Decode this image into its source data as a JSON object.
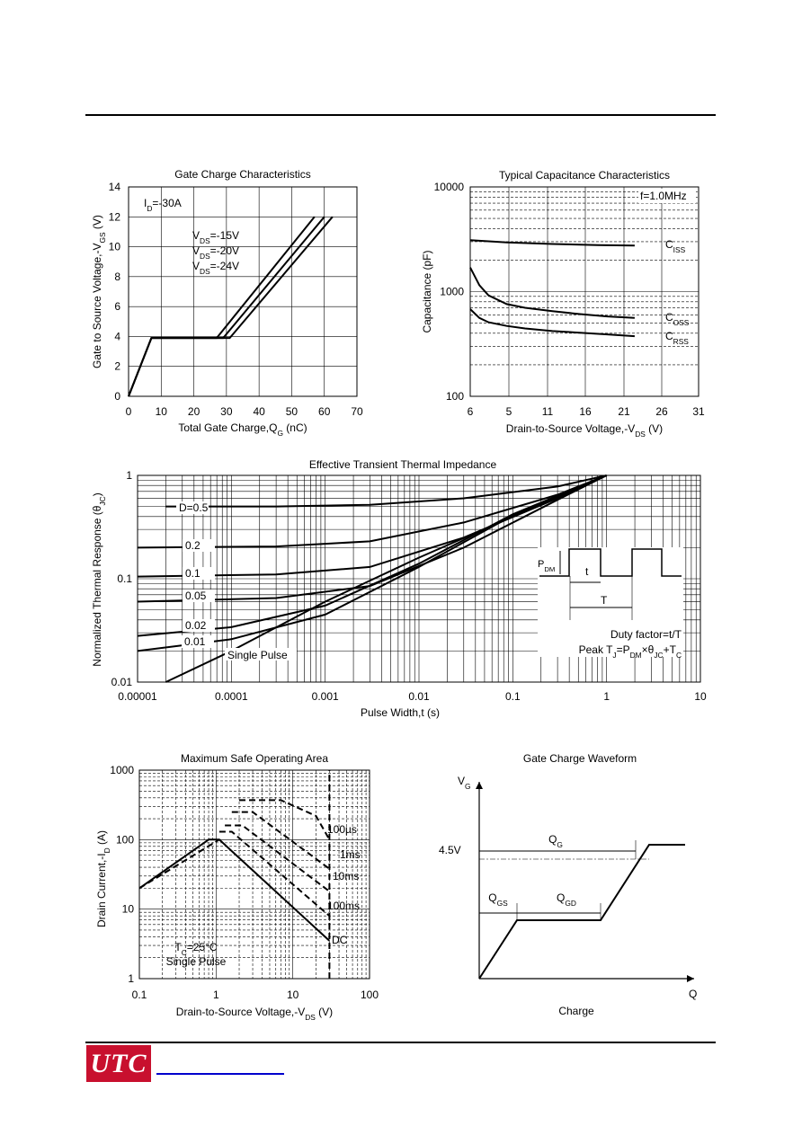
{
  "footer": {
    "logo_text": "UTC"
  },
  "chart_data": [
    {
      "id": "gate_charge",
      "type": "line",
      "title": "Gate Charge Characteristics",
      "xlabel": "Total Gate Charge,Q_G (nC)",
      "ylabel": "Gate to Source Voltage,-V_GS (V)",
      "xlim": [
        0,
        70
      ],
      "ylim": [
        0,
        14
      ],
      "xticks": [
        "0",
        "10",
        "20",
        "30",
        "40",
        "50",
        "60",
        "70"
      ],
      "yticks": [
        "0",
        "2",
        "4",
        "6",
        "8",
        "10",
        "12",
        "14"
      ],
      "grid": true,
      "annotations": [
        "I_D=-30A",
        "V_DS=-15V",
        "V_DS=-20V",
        "V_DS=-24V"
      ],
      "series": [
        {
          "x": [
            0,
            7,
            27,
            57
          ],
          "y": [
            0,
            3.9,
            3.9,
            12
          ]
        },
        {
          "x": [
            0,
            7,
            29,
            60
          ],
          "y": [
            0,
            3.9,
            3.9,
            12
          ]
        },
        {
          "x": [
            0,
            7,
            31,
            62.5
          ],
          "y": [
            0,
            3.9,
            3.9,
            12
          ]
        }
      ]
    },
    {
      "id": "capacitance",
      "type": "line",
      "title": "Typical Capacitance  Characteristics",
      "xlabel": "Drain-to-Source Voltage,-V_DS (V)",
      "ylabel": "Capacitance (pF)",
      "xlim": [
        6,
        31
      ],
      "ylim": [
        100,
        10000
      ],
      "yscale": "log",
      "xticks": [
        "6",
        "5",
        "11",
        "16",
        "21",
        "26",
        "31"
      ],
      "yticks": [
        "100",
        "1000",
        "10000"
      ],
      "grid": true,
      "annotations": [
        "f=1.0MHz"
      ],
      "series": [
        {
          "name": "C_ISS",
          "x": [
            6,
            10,
            15,
            20,
            24
          ],
          "y": [
            3100,
            2950,
            2850,
            2780,
            2750
          ]
        },
        {
          "name": "C_OSS",
          "x": [
            6,
            7,
            8,
            10,
            12,
            15,
            18,
            21,
            24
          ],
          "y": [
            1700,
            1150,
            920,
            760,
            700,
            650,
            610,
            580,
            560
          ]
        },
        {
          "name": "C_RSS",
          "x": [
            6,
            7,
            8,
            10,
            12,
            15,
            18,
            21,
            24
          ],
          "y": [
            680,
            560,
            510,
            470,
            445,
            420,
            405,
            390,
            375
          ]
        }
      ]
    },
    {
      "id": "thermal_impedance",
      "type": "line",
      "title": "Effective Transient Thermal Impedance",
      "xlabel": "Pulse Width,t (s)",
      "ylabel": "Normalized Thermal Response (θ_JC)",
      "xscale": "log",
      "yscale": "log",
      "xlim": [
        1e-05,
        10
      ],
      "ylim": [
        0.01,
        1
      ],
      "xticks": [
        "0.00001",
        "0.0001",
        "0.001",
        "0.01",
        "0.1",
        "1",
        "10"
      ],
      "yticks": [
        "0.01",
        "0.1",
        "1"
      ],
      "grid": true,
      "annotations": [
        "P_DM",
        "t",
        "T",
        "Duty factor=t/T",
        "Peak T_J=P_DM×θ_JC+T_C"
      ],
      "series": [
        {
          "name": "D=0.5",
          "x": [
            2e-05,
            0.0003,
            0.003,
            0.03,
            0.3,
            1
          ],
          "y": [
            0.5,
            0.5,
            0.52,
            0.6,
            0.78,
            1
          ]
        },
        {
          "name": "0.2",
          "x": [
            1e-05,
            0.0003,
            0.003,
            0.03,
            0.3,
            1
          ],
          "y": [
            0.2,
            0.205,
            0.23,
            0.35,
            0.65,
            1
          ]
        },
        {
          "name": "0.1",
          "x": [
            1e-05,
            0.0003,
            0.003,
            0.03,
            0.3,
            1
          ],
          "y": [
            0.105,
            0.11,
            0.13,
            0.25,
            0.6,
            1
          ]
        },
        {
          "name": "0.05",
          "x": [
            1e-05,
            0.0003,
            0.003,
            0.03,
            0.3,
            1
          ],
          "y": [
            0.06,
            0.065,
            0.085,
            0.2,
            0.58,
            1
          ]
        },
        {
          "name": "0.02",
          "x": [
            1e-05,
            0.0001,
            0.001,
            0.01,
            0.1,
            1
          ],
          "y": [
            0.028,
            0.034,
            0.055,
            0.14,
            0.42,
            1
          ]
        },
        {
          "name": "0.01",
          "x": [
            1e-05,
            0.0001,
            0.001,
            0.01,
            0.1,
            1
          ],
          "y": [
            0.02,
            0.026,
            0.045,
            0.13,
            0.41,
            1
          ]
        },
        {
          "name": "Single Pulse",
          "x": [
            2e-05,
            0.0001,
            0.001,
            0.01,
            0.1,
            1
          ],
          "y": [
            0.01,
            0.02,
            0.06,
            0.16,
            0.4,
            1
          ]
        }
      ]
    },
    {
      "id": "safe_operating_area",
      "type": "line",
      "title": "Maximum Safe Operating Area",
      "xlabel": "Drain-to-Source Voltage,-V_DS (V)",
      "ylabel": "Drain Current,-I_D (A)",
      "xscale": "log",
      "yscale": "log",
      "xlim": [
        0.1,
        100
      ],
      "ylim": [
        1,
        1000
      ],
      "xticks": [
        "0.1",
        "1",
        "10",
        "100"
      ],
      "yticks": [
        "1",
        "10",
        "100",
        "1000"
      ],
      "grid": true,
      "annotations": [
        "T_C=25°C",
        "Single Pulse"
      ],
      "series": [
        {
          "name": "100µs",
          "x": [
            2,
            7,
            20,
            30
          ],
          "y": [
            370,
            370,
            220,
            100
          ]
        },
        {
          "name": "1ms",
          "x": [
            1.6,
            3,
            30
          ],
          "y": [
            250,
            250,
            38
          ]
        },
        {
          "name": "10ms",
          "x": [
            1.3,
            2.2,
            30
          ],
          "y": [
            160,
            160,
            18
          ]
        },
        {
          "name": "100ms",
          "x": [
            1.1,
            1.6,
            30
          ],
          "y": [
            130,
            130,
            8
          ]
        },
        {
          "name": "DC",
          "x": [
            0.1,
            0.8,
            1.1,
            30
          ],
          "y": [
            20,
            100,
            100,
            3.5
          ]
        }
      ],
      "limit_line": {
        "x": [
          30,
          30
        ],
        "y": [
          1,
          1000
        ]
      }
    },
    {
      "id": "gate_waveform",
      "type": "line",
      "title": "Gate Charge Waveform",
      "xlabel": "Charge",
      "annotations": [
        "V_G",
        "Q",
        "4.5V",
        "Q_G",
        "Q_GS",
        "Q_GD"
      ],
      "series": [
        {
          "x": [
            0,
            0.2,
            0.55,
            0.8,
            1
          ],
          "y": [
            0,
            0.45,
            0.45,
            1,
            1
          ]
        }
      ]
    }
  ]
}
